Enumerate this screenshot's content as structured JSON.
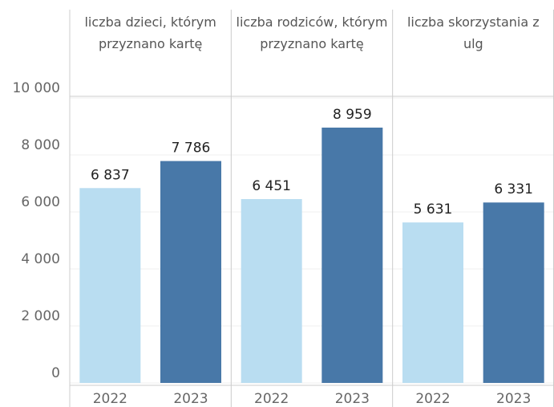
{
  "chart_data": {
    "type": "bar",
    "panels": [
      {
        "title": "liczba dzieci, którym przyznano kartę",
        "categories": [
          "2022",
          "2023"
        ],
        "values": [
          6837,
          7786
        ],
        "value_labels": [
          "6 837",
          "7 786"
        ]
      },
      {
        "title": "liczba rodziców, którym przyznano kartę",
        "categories": [
          "2022",
          "2023"
        ],
        "values": [
          6451,
          8959
        ],
        "value_labels": [
          "6 451",
          "8 959"
        ]
      },
      {
        "title": "liczba skorzystania z ulg",
        "categories": [
          "2022",
          "2023"
        ],
        "values": [
          5631,
          6331
        ],
        "value_labels": [
          "5 631",
          "6 331"
        ]
      }
    ],
    "colors": [
      "#b9ddf1",
      "#4878a8"
    ],
    "ylim": [
      0,
      10000
    ],
    "yticks": [
      0,
      {
        "value": 2000,
        "label": "2 000"
      },
      {
        "value": 4000,
        "label": "4 000"
      },
      {
        "value": 6000,
        "label": "6 000"
      },
      {
        "value": 8000,
        "label": "8 000"
      },
      {
        "value": 10000,
        "label": "10 000"
      }
    ],
    "grid": true
  }
}
